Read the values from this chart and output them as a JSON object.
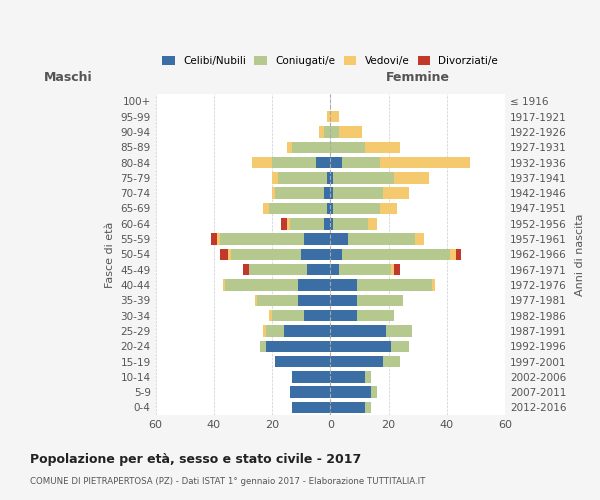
{
  "age_groups": [
    "100+",
    "95-99",
    "90-94",
    "85-89",
    "80-84",
    "75-79",
    "70-74",
    "65-69",
    "60-64",
    "55-59",
    "50-54",
    "45-49",
    "40-44",
    "35-39",
    "30-34",
    "25-29",
    "20-24",
    "15-19",
    "10-14",
    "5-9",
    "0-4"
  ],
  "birth_years": [
    "≤ 1916",
    "1917-1921",
    "1922-1926",
    "1927-1931",
    "1932-1936",
    "1937-1941",
    "1942-1946",
    "1947-1951",
    "1952-1956",
    "1957-1961",
    "1962-1966",
    "1967-1971",
    "1972-1976",
    "1977-1981",
    "1982-1986",
    "1987-1991",
    "1992-1996",
    "1997-2001",
    "2002-2006",
    "2007-2011",
    "2012-2016"
  ],
  "maschi": {
    "celibi": [
      0,
      0,
      0,
      0,
      5,
      1,
      2,
      1,
      2,
      9,
      10,
      8,
      11,
      11,
      9,
      16,
      22,
      19,
      13,
      14,
      13
    ],
    "coniugati": [
      0,
      0,
      2,
      13,
      15,
      17,
      17,
      20,
      12,
      29,
      24,
      20,
      25,
      14,
      11,
      6,
      2,
      0,
      0,
      0,
      0
    ],
    "vedovi": [
      0,
      1,
      2,
      2,
      7,
      2,
      1,
      2,
      1,
      1,
      1,
      0,
      1,
      1,
      1,
      1,
      0,
      0,
      0,
      0,
      0
    ],
    "divorziati": [
      0,
      0,
      0,
      0,
      0,
      0,
      0,
      0,
      2,
      2,
      3,
      2,
      0,
      0,
      0,
      0,
      0,
      0,
      0,
      0,
      0
    ]
  },
  "femmine": {
    "nubili": [
      0,
      0,
      0,
      0,
      4,
      1,
      1,
      1,
      1,
      6,
      4,
      3,
      9,
      9,
      9,
      19,
      21,
      18,
      12,
      14,
      12
    ],
    "coniugate": [
      0,
      0,
      3,
      12,
      13,
      21,
      17,
      16,
      12,
      23,
      37,
      18,
      26,
      16,
      13,
      9,
      6,
      6,
      2,
      2,
      2
    ],
    "vedove": [
      0,
      3,
      8,
      12,
      31,
      12,
      9,
      6,
      3,
      3,
      2,
      1,
      1,
      0,
      0,
      0,
      0,
      0,
      0,
      0,
      0
    ],
    "divorziate": [
      0,
      0,
      0,
      0,
      0,
      0,
      0,
      0,
      0,
      0,
      2,
      2,
      0,
      0,
      0,
      0,
      0,
      0,
      0,
      0,
      0
    ]
  },
  "colors": {
    "celibi": "#3a6ea5",
    "coniugati": "#b5c98e",
    "vedovi": "#f5c96e",
    "divorziati": "#c0392b"
  },
  "title": "Popolazione per età, sesso e stato civile - 2017",
  "subtitle": "COMUNE DI PIETRAPERTOSA (PZ) - Dati ISTAT 1° gennaio 2017 - Elaborazione TUTTITALIA.IT",
  "xlabel_left": "Maschi",
  "xlabel_right": "Femmine",
  "ylabel": "Fasce di età",
  "ylabel_right": "Anni di nascita",
  "xlim": 60,
  "bg_color": "#f5f5f5",
  "plot_bg": "#ffffff",
  "grid_color": "#cccccc"
}
